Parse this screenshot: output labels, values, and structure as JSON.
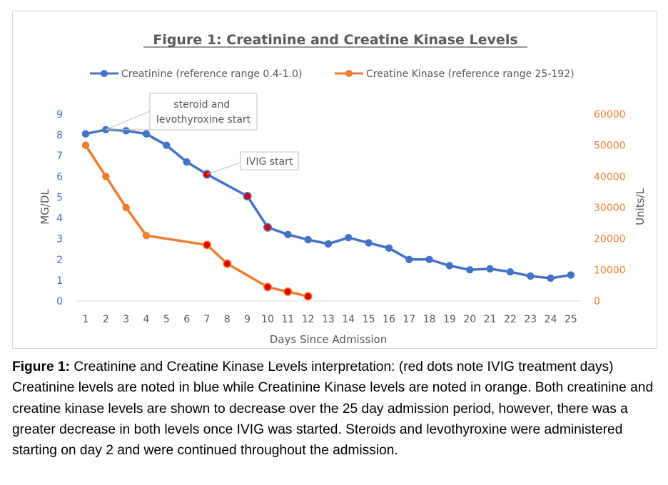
{
  "chart_data": {
    "type": "line",
    "title": "Figure 1: Creatinine and Creatine Kinase Levels",
    "xlabel": "Days Since Admission",
    "ylabel_left": "MG/DL",
    "ylabel_right": "Units/L",
    "x_categories": [
      1,
      2,
      3,
      4,
      5,
      6,
      7,
      8,
      9,
      10,
      11,
      12,
      13,
      14,
      15,
      16,
      17,
      18,
      19,
      20,
      21,
      22,
      23,
      24,
      25
    ],
    "y_left": {
      "min": 0,
      "max": 9,
      "ticks": [
        0,
        1,
        2,
        3,
        4,
        5,
        6,
        7,
        8,
        9
      ]
    },
    "y_right": {
      "min": 0,
      "max": 60000,
      "ticks": [
        0,
        10000,
        20000,
        30000,
        40000,
        50000,
        60000
      ]
    },
    "legend_position": "top",
    "series": [
      {
        "name": "Creatinine (reference range 0.4-1.0)",
        "axis": "left",
        "color": "#4472c4",
        "x": [
          1,
          2,
          3,
          4,
          5,
          6,
          7,
          9,
          10,
          11,
          12,
          13,
          14,
          15,
          16,
          17,
          18,
          19,
          20,
          21,
          22,
          23,
          24,
          25
        ],
        "values": [
          8.05,
          8.25,
          8.2,
          8.05,
          7.5,
          6.7,
          6.1,
          5.05,
          3.55,
          3.2,
          2.95,
          2.75,
          3.05,
          2.8,
          2.55,
          2.0,
          2.0,
          1.7,
          1.5,
          1.55,
          1.4,
          1.2,
          1.1,
          1.25
        ],
        "highlighted_x": [
          7,
          9,
          10
        ]
      },
      {
        "name": "Creatine Kinase (reference range 25-192)",
        "axis": "right",
        "color": "#ed7d31",
        "x": [
          1,
          2,
          3,
          4,
          7,
          8,
          10,
          11,
          12
        ],
        "values": [
          50000,
          40000,
          30000,
          21000,
          18000,
          12000,
          4500,
          3000,
          1500
        ],
        "highlighted_x": [
          7,
          8,
          10,
          11,
          12
        ]
      }
    ],
    "highlight_color": "#e00000",
    "annotations": [
      {
        "text": "steroid and levothyroxine start",
        "series": "Creatinine (reference range 0.4-1.0)",
        "x": 2
      },
      {
        "text": "IVIG start",
        "series": "Creatinine (reference range 0.4-1.0)",
        "x": 7
      }
    ]
  },
  "caption": {
    "label": "Figure 1:",
    "text": " Creatinine and Creatine Kinase Levels interpretation: (red dots note IVIG treatment days) Creatinine levels are noted in blue while Creatinine Kinase levels are noted in orange. Both creatinine and creatine kinase levels are shown to decrease over the 25 day admission period, however, there was a greater decrease in both levels once IVIG was started. Steroids and levothyroxine were administered starting on day 2 and were continued throughout the admission."
  }
}
